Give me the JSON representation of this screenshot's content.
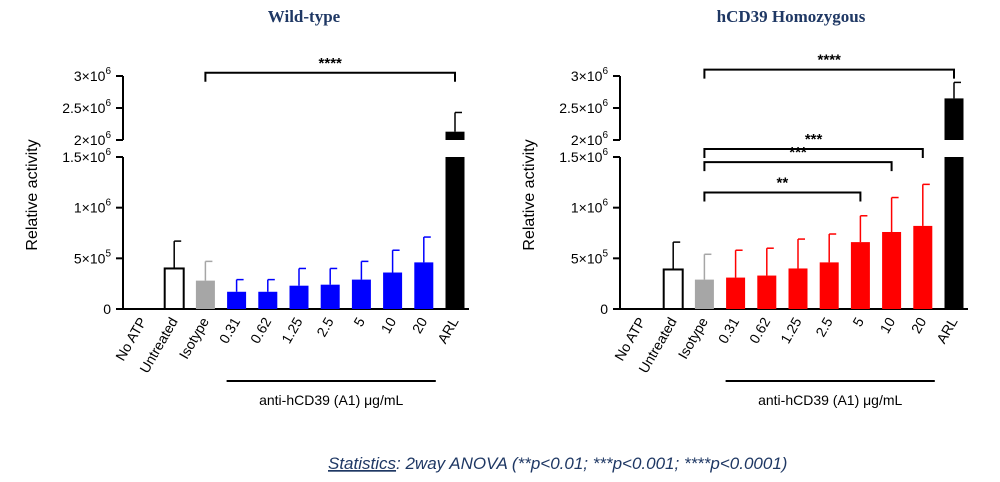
{
  "chart_data": [
    {
      "type": "bar",
      "title": "Wild-type",
      "ylabel": "Relative activity",
      "ylim": [
        0,
        3000000
      ],
      "y_axis_break": [
        1500000,
        2000000
      ],
      "yticks_lower": [
        {
          "value": 0,
          "label": "0"
        },
        {
          "value": 500000,
          "label": "5×10",
          "exp": "5"
        },
        {
          "value": 1000000,
          "label": "1×10",
          "exp": "6"
        },
        {
          "value": 1500000,
          "label": "1.5×10",
          "exp": "6"
        }
      ],
      "yticks_upper": [
        {
          "value": 2000000,
          "label": "2×10",
          "exp": "6"
        },
        {
          "value": 2500000,
          "label": "2.5×10",
          "exp": "6"
        },
        {
          "value": 3000000,
          "label": "3×10",
          "exp": "6"
        }
      ],
      "categories": [
        "No ATP",
        "Untreated",
        "Isotype",
        "0.31",
        "0.62",
        "1.25",
        "2.5",
        "5",
        "10",
        "20",
        "ARL"
      ],
      "values": [
        0,
        400000,
        280000,
        170000,
        170000,
        230000,
        240000,
        290000,
        360000,
        460000,
        2130000
      ],
      "errors": [
        0,
        270000,
        190000,
        120000,
        120000,
        170000,
        160000,
        180000,
        220000,
        250000,
        300000
      ],
      "colors": [
        "#ffffff",
        "#ffffff",
        "#a6a6a6",
        "#0000ff",
        "#0000ff",
        "#0000ff",
        "#0000ff",
        "#0000ff",
        "#0000ff",
        "#0000ff",
        "#000000"
      ],
      "group_label": "anti-hCD39 (A1) μg/mL",
      "group_span": [
        3,
        9
      ],
      "comparisons": [
        {
          "from": 2,
          "to": 10,
          "label": "****",
          "level": 3050000
        }
      ]
    },
    {
      "type": "bar",
      "title": "hCD39 Homozygous",
      "ylabel": "Relative activity",
      "ylim": [
        0,
        3000000
      ],
      "y_axis_break": [
        1500000,
        2000000
      ],
      "yticks_lower": [
        {
          "value": 0,
          "label": "0"
        },
        {
          "value": 500000,
          "label": "5×10",
          "exp": "5"
        },
        {
          "value": 1000000,
          "label": "1×10",
          "exp": "6"
        },
        {
          "value": 1500000,
          "label": "1.5×10",
          "exp": "6"
        }
      ],
      "yticks_upper": [
        {
          "value": 2000000,
          "label": "2×10",
          "exp": "6"
        },
        {
          "value": 2500000,
          "label": "2.5×10",
          "exp": "6"
        },
        {
          "value": 3000000,
          "label": "3×10",
          "exp": "6"
        }
      ],
      "categories": [
        "No ATP",
        "Untreated",
        "Isotype",
        "0.31",
        "0.62",
        "1.25",
        "2.5",
        "5",
        "10",
        "20",
        "ARL"
      ],
      "values": [
        0,
        390000,
        290000,
        310000,
        330000,
        400000,
        460000,
        660000,
        760000,
        820000,
        2650000
      ],
      "errors": [
        0,
        270000,
        250000,
        270000,
        270000,
        290000,
        280000,
        260000,
        340000,
        410000,
        250000
      ],
      "colors": [
        "#ffffff",
        "#ffffff",
        "#a6a6a6",
        "#ff0000",
        "#ff0000",
        "#ff0000",
        "#ff0000",
        "#ff0000",
        "#ff0000",
        "#ff0000",
        "#000000"
      ],
      "group_label": "anti-hCD39 (A1) μg/mL",
      "group_span": [
        3,
        9
      ],
      "comparisons": [
        {
          "from": 2,
          "to": 10,
          "label": "****",
          "level": 3100000
        },
        {
          "from": 2,
          "to": 9,
          "label": "***",
          "level": 1750000
        },
        {
          "from": 2,
          "to": 8,
          "label": "***",
          "level": 1450000
        },
        {
          "from": 2,
          "to": 7,
          "label": "**",
          "level": 1150000
        }
      ]
    }
  ],
  "footer": {
    "statistics_label": "Statistics",
    "statistics_text": ": 2way ANOVA (**p<0.01; ***p<0.001; ****p<0.0001)"
  }
}
